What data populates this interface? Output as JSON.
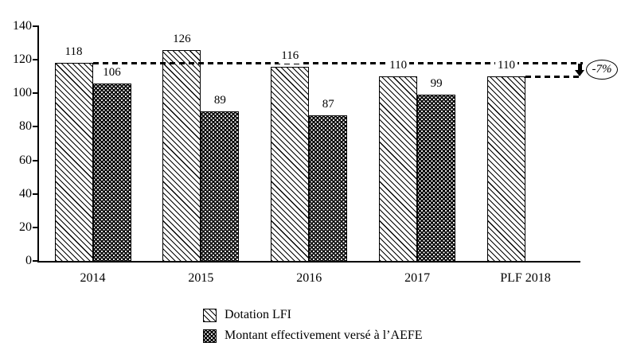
{
  "colors": {
    "ink": "#000000",
    "background": "#ffffff"
  },
  "chart_data": {
    "type": "bar",
    "title": "",
    "xlabel": "",
    "ylabel": "",
    "categories": [
      "2014",
      "2015",
      "2016",
      "2017",
      "PLF 2018"
    ],
    "series": [
      {
        "name": "Dotation LFI",
        "pattern": "diagonal-hatch",
        "values": [
          118,
          126,
          116,
          110,
          110
        ]
      },
      {
        "name": "Montant effectivement versé à l’AEFE",
        "pattern": "black-with-white-dots",
        "values": [
          106,
          89,
          87,
          99,
          null
        ]
      }
    ],
    "ylim": [
      0,
      140
    ],
    "yticks": [
      0,
      20,
      40,
      60,
      80,
      100,
      120,
      140
    ],
    "grid": false,
    "legend_position": "bottom-left",
    "bar_value_labels": true,
    "annotation": {
      "label": "-7%",
      "from_value": 118,
      "to_value": 110,
      "description": "dashed reference lines from 2014 LFI level (118) down-arrow to PLF 2018 level (110)"
    }
  }
}
